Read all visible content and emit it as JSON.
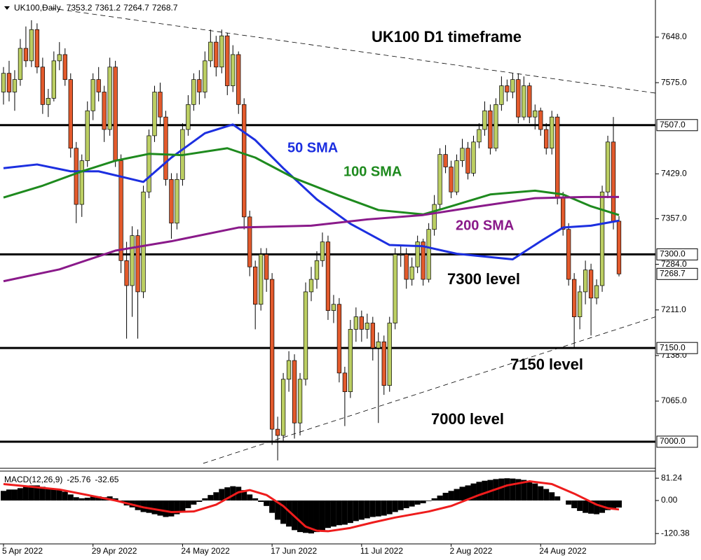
{
  "chart_data": {
    "type": "candlestick",
    "header": "UK100,Daily",
    "title": "UK100 D1 timeframe",
    "categories": [
      "5 Apr 2022",
      null,
      null,
      null,
      null,
      null,
      null,
      null,
      null,
      null,
      null,
      null,
      null,
      null,
      null,
      null,
      "29 Apr 2022",
      null,
      null,
      null,
      null,
      null,
      null,
      null,
      null,
      null,
      null,
      null,
      null,
      null,
      null,
      null,
      "24 May 2022",
      null,
      null,
      null,
      null,
      null,
      null,
      null,
      null,
      null,
      null,
      null,
      null,
      null,
      null,
      null,
      "17 Jun 2022",
      null,
      null,
      null,
      null,
      null,
      null,
      null,
      null,
      null,
      null,
      null,
      null,
      null,
      null,
      null,
      "11 Jul 2022",
      null,
      null,
      null,
      null,
      null,
      null,
      null,
      null,
      null,
      null,
      null,
      null,
      null,
      null,
      null,
      "2 Aug 2022",
      null,
      null,
      null,
      null,
      null,
      null,
      null,
      null,
      null,
      null,
      null,
      null,
      null,
      null,
      null,
      "24 Aug 2022",
      null,
      null,
      null,
      null,
      null,
      null,
      null,
      null,
      null,
      null,
      null,
      null,
      null,
      null
    ],
    "ohlc": [
      [
        7560,
        7600,
        7540,
        7590
      ],
      [
        7590,
        7610,
        7545,
        7560
      ],
      [
        7560,
        7595,
        7530,
        7580
      ],
      [
        7580,
        7645,
        7570,
        7630
      ],
      [
        7630,
        7665,
        7600,
        7610
      ],
      [
        7610,
        7675,
        7600,
        7660
      ],
      [
        7660,
        7670,
        7590,
        7600
      ],
      [
        7600,
        7615,
        7525,
        7540
      ],
      [
        7540,
        7565,
        7520,
        7550
      ],
      [
        7550,
        7625,
        7545,
        7610
      ],
      [
        7610,
        7640,
        7595,
        7620
      ],
      [
        7620,
        7630,
        7570,
        7580
      ],
      [
        7580,
        7590,
        7455,
        7470
      ],
      [
        7470,
        7480,
        7350,
        7380
      ],
      [
        7380,
        7460,
        7360,
        7450
      ],
      [
        7450,
        7545,
        7440,
        7530
      ],
      [
        7530,
        7590,
        7515,
        7580
      ],
      [
        7580,
        7600,
        7545,
        7560
      ],
      [
        7560,
        7570,
        7480,
        7500
      ],
      [
        7500,
        7615,
        7490,
        7600
      ],
      [
        7600,
        7610,
        7440,
        7450
      ],
      [
        7450,
        7460,
        7270,
        7290
      ],
      [
        7290,
        7320,
        7165,
        7250
      ],
      [
        7250,
        7345,
        7200,
        7330
      ],
      [
        7330,
        7340,
        7165,
        7240
      ],
      [
        7240,
        7410,
        7230,
        7400
      ],
      [
        7400,
        7500,
        7390,
        7490
      ],
      [
        7490,
        7570,
        7480,
        7560
      ],
      [
        7560,
        7575,
        7505,
        7520
      ],
      [
        7520,
        7530,
        7410,
        7420
      ],
      [
        7420,
        7430,
        7325,
        7350
      ],
      [
        7350,
        7430,
        7340,
        7420
      ],
      [
        7420,
        7510,
        7410,
        7500
      ],
      [
        7500,
        7555,
        7490,
        7540
      ],
      [
        7540,
        7590,
        7530,
        7580
      ],
      [
        7580,
        7595,
        7540,
        7560
      ],
      [
        7560,
        7625,
        7550,
        7610
      ],
      [
        7610,
        7660,
        7600,
        7640
      ],
      [
        7640,
        7650,
        7585,
        7600
      ],
      [
        7600,
        7660,
        7590,
        7650
      ],
      [
        7650,
        7655,
        7555,
        7570
      ],
      [
        7570,
        7635,
        7560,
        7620
      ],
      [
        7620,
        7625,
        7525,
        7540
      ],
      [
        7540,
        7550,
        7340,
        7360
      ],
      [
        7360,
        7370,
        7265,
        7280
      ],
      [
        7280,
        7290,
        7180,
        7220
      ],
      [
        7220,
        7310,
        7210,
        7300
      ],
      [
        7300,
        7310,
        7240,
        7260
      ],
      [
        7260,
        7270,
        6995,
        7020
      ],
      [
        7020,
        7040,
        6970,
        7010
      ],
      [
        7010,
        7110,
        7000,
        7100
      ],
      [
        7100,
        7145,
        7080,
        7130
      ],
      [
        7130,
        7140,
        7005,
        7030
      ],
      [
        7030,
        7110,
        7010,
        7100
      ],
      [
        7100,
        7255,
        7090,
        7240
      ],
      [
        7240,
        7280,
        7225,
        7260
      ],
      [
        7260,
        7305,
        7245,
        7290
      ],
      [
        7290,
        7335,
        7280,
        7320
      ],
      [
        7320,
        7330,
        7195,
        7210
      ],
      [
        7210,
        7235,
        7190,
        7220
      ],
      [
        7220,
        7230,
        7095,
        7110
      ],
      [
        7110,
        7120,
        7025,
        7080
      ],
      [
        7080,
        7195,
        7070,
        7180
      ],
      [
        7180,
        7215,
        7160,
        7200
      ],
      [
        7200,
        7210,
        7160,
        7180
      ],
      [
        7180,
        7205,
        7165,
        7190
      ],
      [
        7190,
        7200,
        7130,
        7150
      ],
      [
        7150,
        7175,
        7030,
        7160
      ],
      [
        7160,
        7170,
        7075,
        7090
      ],
      [
        7090,
        7200,
        7080,
        7190
      ],
      [
        7190,
        7310,
        7180,
        7300
      ],
      [
        7300,
        7315,
        7280,
        7300
      ],
      [
        7300,
        7310,
        7245,
        7260
      ],
      [
        7260,
        7295,
        7250,
        7280
      ],
      [
        7280,
        7330,
        7270,
        7320
      ],
      [
        7320,
        7325,
        7250,
        7260
      ],
      [
        7260,
        7350,
        7255,
        7340
      ],
      [
        7340,
        7395,
        7330,
        7380
      ],
      [
        7380,
        7470,
        7370,
        7460
      ],
      [
        7460,
        7475,
        7430,
        7440
      ],
      [
        7440,
        7450,
        7390,
        7400
      ],
      [
        7400,
        7460,
        7395,
        7450
      ],
      [
        7450,
        7485,
        7440,
        7470
      ],
      [
        7470,
        7480,
        7420,
        7430
      ],
      [
        7430,
        7490,
        7425,
        7480
      ],
      [
        7480,
        7510,
        7470,
        7500
      ],
      [
        7500,
        7545,
        7490,
        7530
      ],
      [
        7530,
        7540,
        7460,
        7470
      ],
      [
        7470,
        7550,
        7465,
        7540
      ],
      [
        7540,
        7585,
        7530,
        7570
      ],
      [
        7570,
        7580,
        7545,
        7560
      ],
      [
        7560,
        7590,
        7550,
        7580
      ],
      [
        7580,
        7590,
        7510,
        7520
      ],
      [
        7520,
        7585,
        7515,
        7570
      ],
      [
        7570,
        7575,
        7510,
        7520
      ],
      [
        7520,
        7540,
        7500,
        7530
      ],
      [
        7530,
        7535,
        7490,
        7500
      ],
      [
        7500,
        7510,
        7460,
        7470
      ],
      [
        7470,
        7530,
        7460,
        7520
      ],
      [
        7520,
        7525,
        7380,
        7390
      ],
      [
        7390,
        7400,
        7330,
        7340
      ],
      [
        7340,
        7350,
        7250,
        7260
      ],
      [
        7260,
        7270,
        7150,
        7200
      ],
      [
        7200,
        7250,
        7180,
        7240
      ],
      [
        7240,
        7290,
        7220,
        7275
      ],
      [
        7275,
        7285,
        7170,
        7230
      ],
      [
        7230,
        7260,
        7220,
        7250
      ],
      [
        7250,
        7410,
        7240,
        7400
      ],
      [
        7400,
        7490,
        7390,
        7480
      ],
      [
        7480,
        7520,
        7340,
        7353.2
      ],
      [
        7353.2,
        7361.2,
        7264.7,
        7268.7
      ]
    ],
    "up_color": "#bccf63",
    "down_color": "#e35a2c",
    "ylim": [
      6958.5,
      7707.4
    ],
    "yticks": [
      {
        "value": 7648,
        "label": "7648.0"
      },
      {
        "value": 7575,
        "label": "7575.0"
      },
      {
        "value": 7429,
        "label": "7429.0"
      },
      {
        "value": 7357,
        "label": "7357.0"
      },
      {
        "value": 7284,
        "label": "7284.0"
      },
      {
        "value": 7211,
        "label": "7211.0"
      },
      {
        "value": 7138,
        "label": "7138.0"
      },
      {
        "value": 7065,
        "label": "7065.0"
      }
    ],
    "levels": [
      {
        "value": 7507,
        "label": "7507.0"
      },
      {
        "value": 7300,
        "label": "7300.0"
      },
      {
        "value": 7150,
        "label": "7150.0"
      },
      {
        "value": 7000,
        "label": "7000.0"
      }
    ],
    "moving_averages": [
      {
        "name": "50 SMA",
        "color": "#1c2fe0",
        "x": [
          0,
          6,
          12,
          17,
          25,
          30,
          36,
          41,
          45,
          50,
          56,
          62,
          69,
          75,
          81,
          91,
          96,
          100,
          105,
          110
        ],
        "values": [
          7438,
          7444,
          7433,
          7433,
          7416,
          7455,
          7494,
          7508,
          7483,
          7438,
          7388,
          7349,
          7315,
          7313,
          7301,
          7292,
          7321,
          7343,
          7346,
          7354
        ]
      },
      {
        "name": "100 SMA",
        "color": "#1e8a1e",
        "x": [
          0,
          7,
          14,
          20,
          26,
          32,
          40,
          45,
          52,
          60,
          67,
          75,
          80,
          87,
          95,
          100,
          105,
          110
        ],
        "values": [
          7391,
          7410,
          7433,
          7450,
          7461,
          7459,
          7470,
          7455,
          7422,
          7394,
          7371,
          7364,
          7377,
          7396,
          7402,
          7396,
          7377,
          7363
        ]
      },
      {
        "name": "200 SMA",
        "color": "#8a1a8a",
        "x": [
          0,
          10,
          20,
          30,
          42,
          55,
          65,
          75,
          85,
          95,
          104,
          110
        ],
        "values": [
          7257,
          7276,
          7306,
          7321,
          7343,
          7346,
          7356,
          7363,
          7377,
          7390,
          7392,
          7392
        ]
      }
    ],
    "trendlines": [
      {
        "x": [
          6.9,
          116.5
        ],
        "y": [
          7696.2,
          7558.3
        ]
      },
      {
        "x": [
          35.7,
          116.5
        ],
        "y": [
          6965.3,
          7200
        ]
      }
    ],
    "annotations": [
      {
        "text": "7300 level"
      },
      {
        "text": "7150 level"
      },
      {
        "text": "7000 level"
      }
    ],
    "macd": {
      "label": "MACD(12,26,9)",
      "ylim": [
        -153,
        102
      ],
      "yticks": [
        81.24,
        {
          "value": 0,
          "label": "0.00"
        },
        -120.38
      ],
      "histogram": [
        35,
        40,
        40,
        45,
        50,
        55,
        55,
        50,
        42,
        40,
        38,
        32,
        22,
        12,
        8,
        10,
        14,
        15,
        12,
        15,
        8,
        -5,
        -18,
        -25,
        -35,
        -42,
        -45,
        -50,
        -55,
        -60,
        -58,
        -50,
        -40,
        -28,
        -15,
        -5,
        8,
        20,
        30,
        42,
        48,
        52,
        50,
        38,
        22,
        8,
        -5,
        -20,
        -45,
        -70,
        -85,
        -95,
        -108,
        -115,
        -118,
        -120,
        -115,
        -108,
        -100,
        -95,
        -90,
        -88,
        -82,
        -75,
        -70,
        -65,
        -60,
        -58,
        -55,
        -50,
        -42,
        -35,
        -28,
        -22,
        -15,
        -10,
        -2,
        8,
        18,
        28,
        35,
        42,
        50,
        55,
        62,
        68,
        72,
        75,
        78,
        80,
        81,
        80,
        78,
        75,
        70,
        62,
        52,
        42,
        30,
        15,
        0,
        -15,
        -28,
        -38,
        -45,
        -48,
        -50,
        -45,
        -35,
        -30,
        -25.76
      ],
      "signal": {
        "color": "#ee1c1c",
        "x": [
          0,
          10,
          20,
          25,
          30,
          34,
          38,
          42,
          44,
          47,
          50,
          54,
          56,
          58,
          62,
          66,
          70,
          76,
          80,
          85,
          90,
          94,
          98,
          102,
          106,
          108,
          110
        ],
        "values": [
          60,
          40,
          0,
          -25,
          -42,
          -40,
          -15,
          30,
          38,
          20,
          -20,
          -95,
          -110,
          -112,
          -100,
          -80,
          -62,
          -40,
          -20,
          20,
          55,
          70,
          60,
          25,
          -15,
          -28,
          -32.65
        ]
      }
    }
  }
}
